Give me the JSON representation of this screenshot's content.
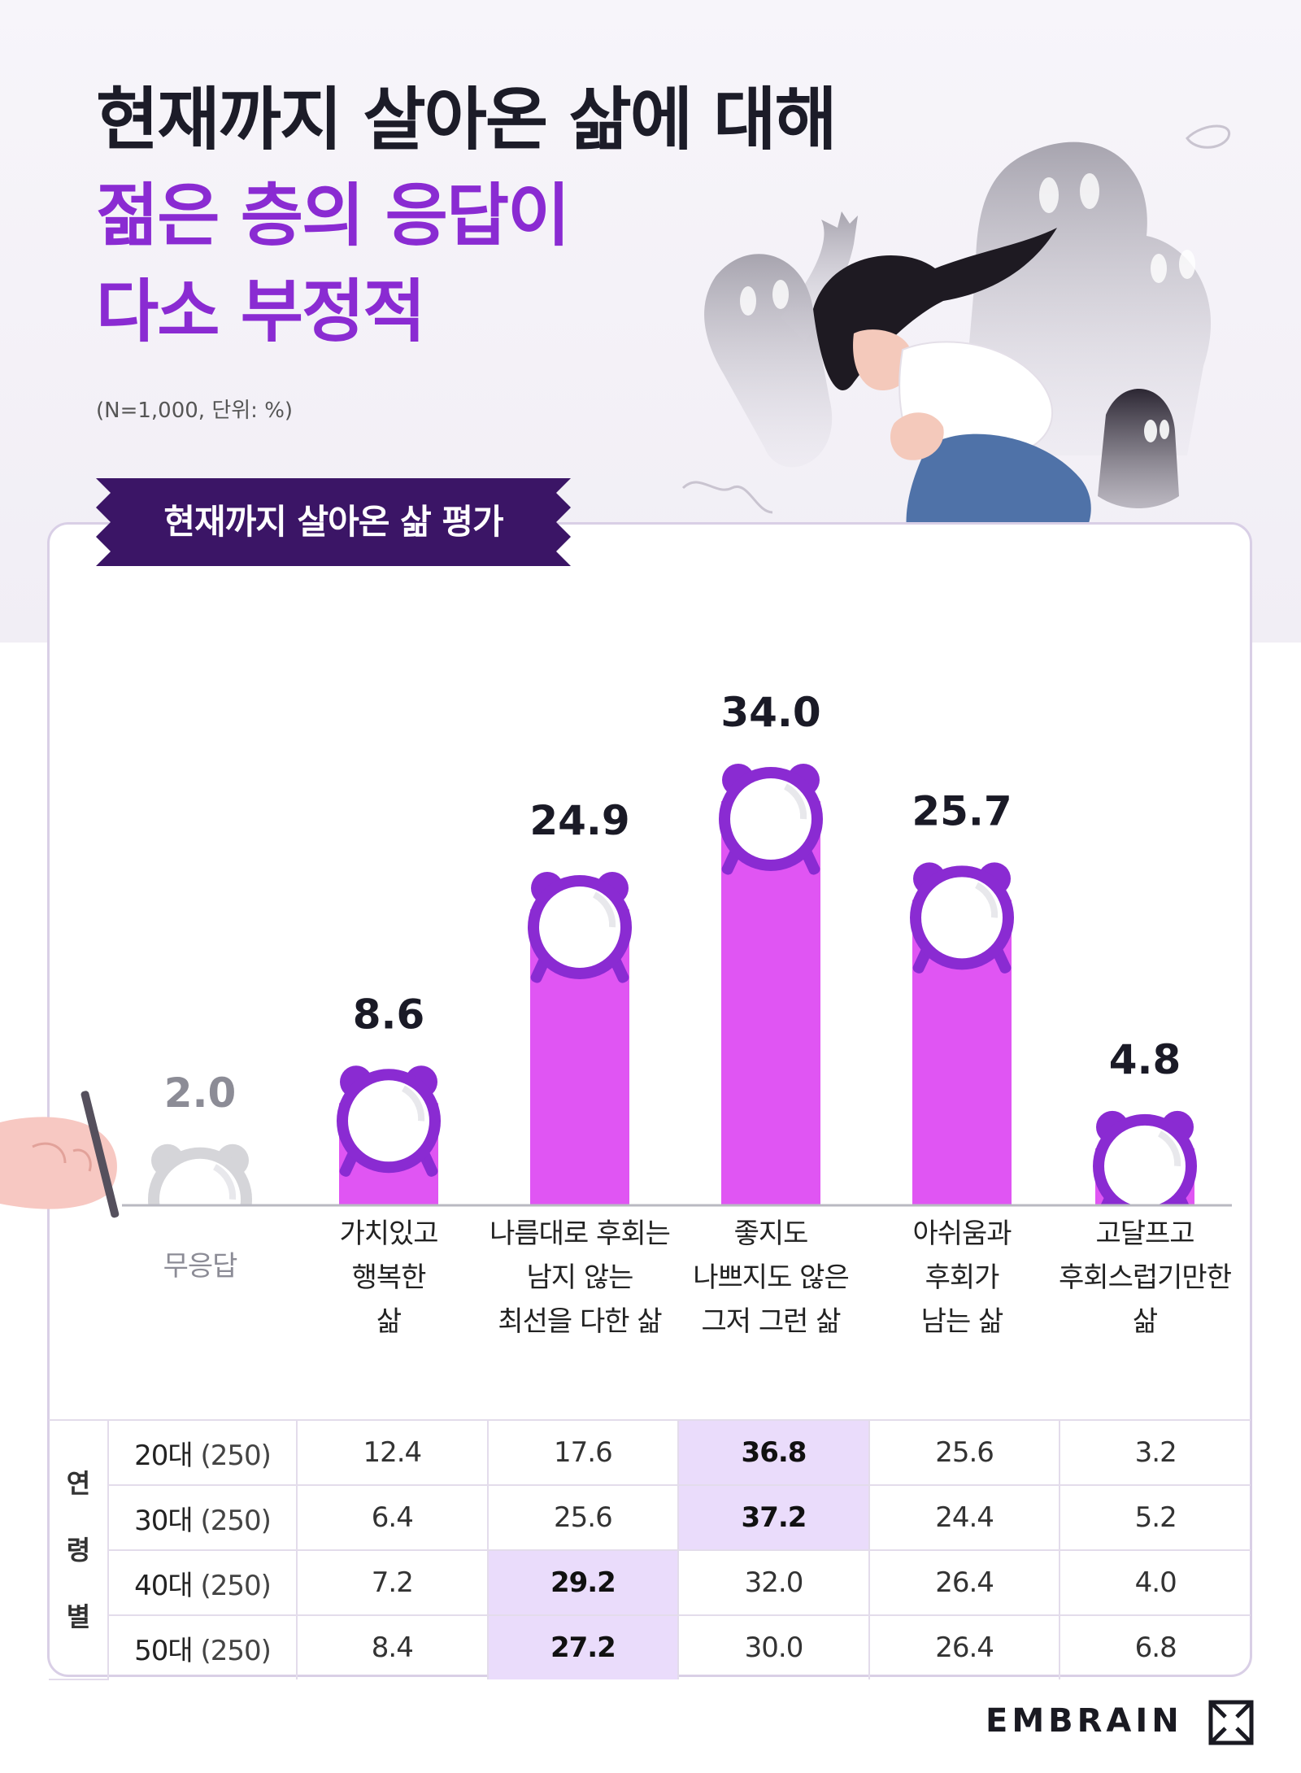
{
  "header": {
    "title_line1": "현재까지 살아온 삶에 대해",
    "title_line2": "젊은 층의 응답이",
    "title_line3": "다소 부정적",
    "note": "(N=1,000, 단위: %)"
  },
  "section": {
    "ribbon_label": "현재까지 살아온 삶 평가"
  },
  "colors": {
    "bar": "#e055f3",
    "bar_no_answer": "#d5d5d9",
    "accent": "#8a2bd2",
    "ribbon": "#3b1566",
    "highlight": "#eadcfb"
  },
  "chart_data": {
    "type": "bar",
    "title": "현재까지 살아온 삶 평가",
    "categories": [
      [
        "무응답"
      ],
      [
        "가치있고",
        "행복한",
        "삶"
      ],
      [
        "나름대로 후회는",
        "남지 않는",
        "최선을 다한 삶"
      ],
      [
        "좋지도",
        "나쁘지도 않은",
        "그저 그런 삶"
      ],
      [
        "아쉬움과",
        "후회가",
        "남는 삶"
      ],
      [
        "고달프고",
        "후회스럽기만한",
        "삶"
      ]
    ],
    "values": [
      2.0,
      8.6,
      24.9,
      34.0,
      25.7,
      4.8
    ],
    "value_labels": [
      "2.0",
      "8.6",
      "24.9",
      "34.0",
      "25.7",
      "4.8"
    ],
    "ylim": [
      0,
      34.0
    ],
    "grid": false,
    "legend": "none"
  },
  "table": {
    "group_label": [
      "연",
      "령",
      "별"
    ],
    "rows": [
      {
        "age": "20대",
        "n": "(250)",
        "values": [
          "12.4",
          "17.6",
          "36.8",
          "25.6",
          "3.2"
        ],
        "highlight": 2
      },
      {
        "age": "30대",
        "n": "(250)",
        "values": [
          "6.4",
          "25.6",
          "37.2",
          "24.4",
          "5.2"
        ],
        "highlight": 2
      },
      {
        "age": "40대",
        "n": "(250)",
        "values": [
          "7.2",
          "29.2",
          "32.0",
          "26.4",
          "4.0"
        ],
        "highlight": 1
      },
      {
        "age": "50대",
        "n": "(250)",
        "values": [
          "8.4",
          "27.2",
          "30.0",
          "26.4",
          "6.8"
        ],
        "highlight": 1
      }
    ]
  },
  "brand": {
    "name": "EMBRAIN"
  }
}
